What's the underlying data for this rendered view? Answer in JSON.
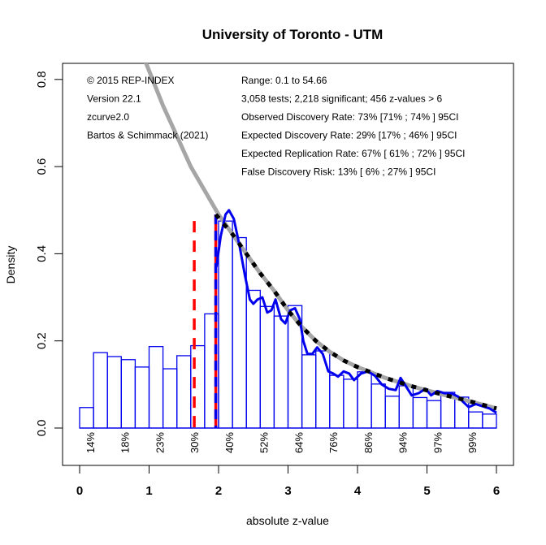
{
  "chart_data": {
    "type": "bar",
    "title": "University of Toronto - UTM",
    "xlabel": "absolute z-value",
    "ylabel": "Density",
    "xlim": [
      -0.22,
      6.25
    ],
    "ylim": [
      -0.09,
      0.84
    ],
    "x_ticks": [
      0,
      1,
      2,
      3,
      4,
      5,
      6
    ],
    "x_tick_labels": [
      "0",
      "1",
      "2",
      "3",
      "4",
      "5",
      "6"
    ],
    "y_ticks": [
      0.0,
      0.2,
      0.4,
      0.6,
      0.8
    ],
    "y_tick_labels": [
      "0.0",
      "0.2",
      "0.4",
      "0.6",
      "0.8"
    ],
    "grid": false,
    "histogram": {
      "bin_width": 0.2,
      "bin_starts": [
        0.0,
        0.2,
        0.4,
        0.6,
        0.8,
        1.0,
        1.2,
        1.4,
        1.6,
        1.8,
        2.0,
        2.2,
        2.4,
        2.6,
        2.8,
        3.0,
        3.2,
        3.4,
        3.6,
        3.8,
        4.0,
        4.2,
        4.4,
        4.6,
        4.8,
        5.0,
        5.2,
        5.4,
        5.6,
        5.8
      ],
      "values": [
        0.047,
        0.173,
        0.164,
        0.157,
        0.14,
        0.187,
        0.136,
        0.166,
        0.189,
        0.262,
        0.475,
        0.437,
        0.316,
        0.279,
        0.257,
        0.281,
        0.168,
        0.177,
        0.121,
        0.112,
        0.129,
        0.101,
        0.073,
        0.097,
        0.07,
        0.063,
        0.082,
        0.071,
        0.037,
        0.032
      ],
      "color": "#0000ee"
    },
    "series": [
      {
        "name": "z-curve fit (grey)",
        "color": "#a6a6a6",
        "x": [
          0.95,
          1.2,
          1.4,
          1.6,
          1.8,
          2.0,
          2.2,
          2.4,
          2.6,
          2.8,
          3.0,
          3.2,
          3.4,
          3.6,
          3.8,
          4.0,
          4.4,
          4.8,
          5.2,
          5.6,
          6.0
        ],
        "y": [
          0.84,
          0.74,
          0.67,
          0.6,
          0.545,
          0.49,
          0.445,
          0.4,
          0.355,
          0.315,
          0.27,
          0.232,
          0.2,
          0.175,
          0.155,
          0.14,
          0.115,
          0.095,
          0.078,
          0.062,
          0.045
        ]
      },
      {
        "name": "z-curve fit (black dashed)",
        "color": "#000000",
        "x": [
          1.96,
          2.2,
          2.4,
          2.6,
          2.8,
          3.0,
          3.2,
          3.4,
          3.6,
          3.8,
          4.0,
          4.4,
          4.8,
          5.2,
          5.6,
          6.0
        ],
        "y": [
          0.49,
          0.445,
          0.4,
          0.355,
          0.315,
          0.27,
          0.232,
          0.2,
          0.175,
          0.155,
          0.14,
          0.115,
          0.095,
          0.078,
          0.062,
          0.045
        ]
      },
      {
        "name": "kernel density (blue)",
        "color": "#0000ee",
        "x": [
          1.97,
          2.03,
          2.1,
          2.15,
          2.22,
          2.3,
          2.38,
          2.45,
          2.5,
          2.56,
          2.63,
          2.7,
          2.76,
          2.82,
          2.9,
          2.96,
          3.03,
          3.1,
          3.17,
          3.22,
          3.28,
          3.35,
          3.42,
          3.5,
          3.58,
          3.65,
          3.72,
          3.8,
          3.88,
          3.95,
          4.05,
          4.15,
          4.25,
          4.35,
          4.45,
          4.55,
          4.62,
          4.7,
          4.78,
          4.88,
          4.98,
          5.06,
          5.15,
          5.25,
          5.35,
          5.45,
          5.52,
          5.6,
          5.7,
          5.8,
          5.9,
          6.0
        ],
        "y": [
          0.37,
          0.44,
          0.49,
          0.5,
          0.48,
          0.42,
          0.35,
          0.295,
          0.285,
          0.295,
          0.3,
          0.265,
          0.27,
          0.295,
          0.25,
          0.24,
          0.27,
          0.275,
          0.25,
          0.2,
          0.17,
          0.17,
          0.185,
          0.17,
          0.13,
          0.125,
          0.118,
          0.13,
          0.125,
          0.11,
          0.125,
          0.13,
          0.12,
          0.1,
          0.09,
          0.087,
          0.115,
          0.095,
          0.075,
          0.08,
          0.09,
          0.075,
          0.085,
          0.08,
          0.08,
          0.072,
          0.06,
          0.048,
          0.055,
          0.05,
          0.045,
          0.035
        ]
      }
    ],
    "vertical_lines": [
      {
        "name": "red-dashed-line",
        "x": 1.65,
        "y_top": 0.475,
        "color": "#ff0000",
        "style": "dashed"
      },
      {
        "name": "significance-line",
        "x": 1.96,
        "y_top": 0.49,
        "color": "#ff0000",
        "overlay_color": "#0000ee",
        "style": "solid+dashed"
      }
    ],
    "power_labels": [
      {
        "x": 0.15,
        "label": "14%"
      },
      {
        "x": 0.65,
        "label": "18%"
      },
      {
        "x": 1.15,
        "label": "23%"
      },
      {
        "x": 1.65,
        "label": "30%"
      },
      {
        "x": 2.15,
        "label": "40%"
      },
      {
        "x": 2.65,
        "label": "52%"
      },
      {
        "x": 3.15,
        "label": "64%"
      },
      {
        "x": 3.65,
        "label": "76%"
      },
      {
        "x": 4.15,
        "label": "86%"
      },
      {
        "x": 4.65,
        "label": "94%"
      },
      {
        "x": 5.15,
        "label": "97%"
      },
      {
        "x": 5.65,
        "label": "99%"
      }
    ],
    "annotations_left": [
      "© 2015 REP-INDEX",
      "Version 22.1",
      "zcurve2.0",
      "Bartos & Schimmack (2021)"
    ],
    "annotations_right": [
      "Range: 0.1 to 54.66",
      "3,058 tests; 2,218 significant; 456 z-values > 6",
      "Observed Discovery Rate: 73% [71% ; 74% ] 95CI",
      "Expected Discovery Rate: 29% [17% ; 46% ] 95CI",
      "Expected Replication Rate: 67% [ 61% ; 72% ] 95CI",
      "False Discovery Risk: 13% [ 6% ; 27% ] 95CI"
    ]
  }
}
